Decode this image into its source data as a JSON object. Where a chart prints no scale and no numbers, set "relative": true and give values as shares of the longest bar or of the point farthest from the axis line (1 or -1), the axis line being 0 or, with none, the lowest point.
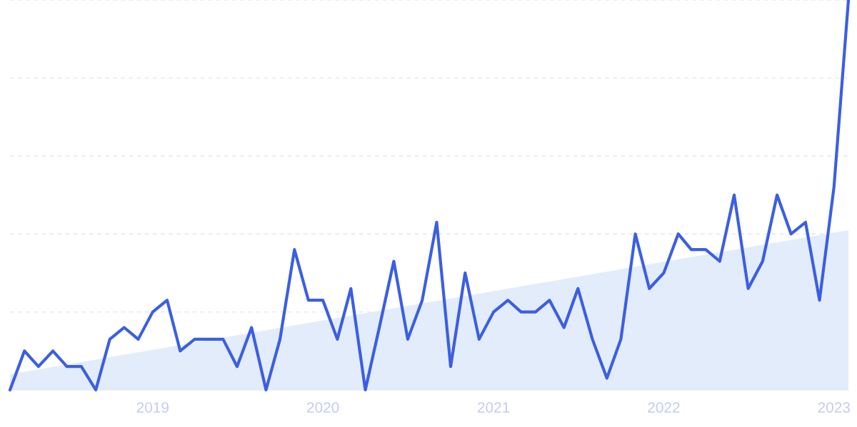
{
  "chart_data": {
    "type": "line",
    "relative": true,
    "grid": "y",
    "x": [
      "2018-03",
      "2018-04",
      "2018-05",
      "2018-06",
      "2018-07",
      "2018-08",
      "2018-09",
      "2018-10",
      "2018-11",
      "2018-12",
      "2019-01",
      "2019-02",
      "2019-03",
      "2019-04",
      "2019-05",
      "2019-06",
      "2019-07",
      "2019-08",
      "2019-09",
      "2019-10",
      "2019-11",
      "2019-12",
      "2020-01",
      "2020-02",
      "2020-03",
      "2020-04",
      "2020-05",
      "2020-06",
      "2020-07",
      "2020-08",
      "2020-09",
      "2020-10",
      "2020-11",
      "2020-12",
      "2021-01",
      "2021-02",
      "2021-03",
      "2021-04",
      "2021-05",
      "2021-06",
      "2021-07",
      "2021-08",
      "2021-09",
      "2021-10",
      "2021-11",
      "2021-12",
      "2022-01",
      "2022-02",
      "2022-03",
      "2022-04",
      "2022-05",
      "2022-06",
      "2022-07",
      "2022-08",
      "2022-09",
      "2022-10",
      "2022-11",
      "2022-12",
      "2023-01",
      "2023-02"
    ],
    "xlim": [
      "2018-03",
      "2023-02"
    ],
    "xticks": [
      {
        "value": "2019-01",
        "label": "2019"
      },
      {
        "value": "2020-01",
        "label": "2020"
      },
      {
        "value": "2021-01",
        "label": "2021"
      },
      {
        "value": "2022-01",
        "label": "2022"
      },
      {
        "value": "2023-01",
        "label": "2023"
      }
    ],
    "series": [
      {
        "type": "area",
        "color": "#e3ecfb",
        "x": [
          "2018-03",
          "2023-02"
        ],
        "values": [
          0.04,
          0.41
        ]
      },
      {
        "color": "#3b5fe2",
        "values": [
          0,
          0.1,
          0.06,
          0.1,
          0.06,
          0.06,
          0,
          0.13,
          0.16,
          0.13,
          0.2,
          0.23,
          0.1,
          0.13,
          0.13,
          0.13,
          0.06,
          0.16,
          0,
          0.13,
          0.36,
          0.23,
          0.23,
          0.13,
          0.26,
          0,
          0.16,
          0.33,
          0.13,
          0.23,
          0.43,
          0.06,
          0.3,
          0.13,
          0.2,
          0.23,
          0.2,
          0.2,
          0.23,
          0.16,
          0.26,
          0.13,
          0.03,
          0.13,
          0.4,
          0.26,
          0.3,
          0.4,
          0.36,
          0.36,
          0.33,
          0.5,
          0.26,
          0.33,
          0.5,
          0.4,
          0.43,
          0.23,
          0.52,
          1
        ]
      }
    ]
  }
}
